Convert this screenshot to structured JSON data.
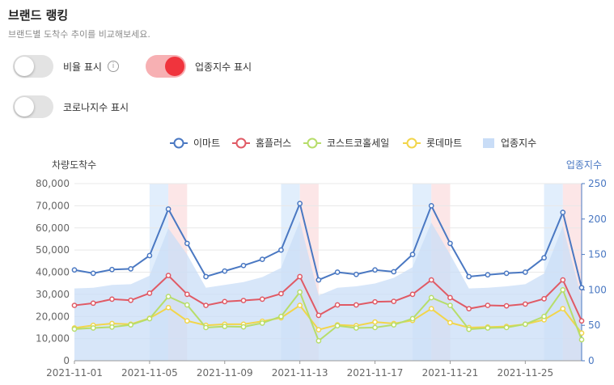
{
  "header": {
    "title": "브랜드 랭킹",
    "subtitle": "브랜드별 도착수 추이를 비교해보세요."
  },
  "toggles": [
    {
      "label": "비율 표시",
      "on": false,
      "info": "i"
    },
    {
      "label": "업종지수 표시",
      "on": true
    },
    {
      "label": "코로나지수 표시",
      "on": false
    }
  ],
  "chart_data": {
    "type": "line",
    "ylabel": "차량도착수",
    "y2label": "업종지수",
    "ylim": [
      0,
      80000
    ],
    "y2lim": [
      0,
      250
    ],
    "yticks": [
      "0",
      "10,000",
      "20,000",
      "30,000",
      "40,000",
      "50,000",
      "60,000",
      "70,000",
      "80,000"
    ],
    "y2ticks": [
      "0",
      "50",
      "100",
      "150",
      "200",
      "250"
    ],
    "x": [
      "2021-11-01",
      "2021-11-02",
      "2021-11-03",
      "2021-11-04",
      "2021-11-05",
      "2021-11-06",
      "2021-11-07",
      "2021-11-08",
      "2021-11-09",
      "2021-11-10",
      "2021-11-11",
      "2021-11-12",
      "2021-11-13",
      "2021-11-14",
      "2021-11-15",
      "2021-11-16",
      "2021-11-17",
      "2021-11-18",
      "2021-11-19",
      "2021-11-20",
      "2021-11-21",
      "2021-11-22",
      "2021-11-23",
      "2021-11-24",
      "2021-11-25",
      "2021-11-26",
      "2021-11-27",
      "2021-11-28"
    ],
    "xtick_labels": [
      "2021-11-01",
      "2021-11-05",
      "2021-11-09",
      "2021-11-13",
      "2021-11-17",
      "2021-11-21",
      "2021-11-25"
    ],
    "legend_position": "top",
    "series": [
      {
        "name": "이마트",
        "color": "#4a78c2",
        "values": [
          41000,
          39500,
          41200,
          41500,
          47500,
          68500,
          53000,
          38000,
          40500,
          43000,
          45800,
          50000,
          71000,
          36500,
          40000,
          39000,
          41000,
          40200,
          48000,
          70000,
          53000,
          38000,
          38800,
          39500,
          40000,
          46500,
          67000,
          33000
        ]
      },
      {
        "name": "홈플러스",
        "color": "#e05a65",
        "values": [
          25000,
          26000,
          27800,
          27300,
          30500,
          38500,
          30000,
          25000,
          26700,
          27200,
          27800,
          30300,
          38000,
          20500,
          25200,
          25200,
          26600,
          26800,
          30000,
          36500,
          28500,
          23500,
          25000,
          24800,
          25600,
          28000,
          36500,
          18000
        ]
      },
      {
        "name": "코스트코홀세일",
        "color": "#b7dd6a",
        "values": [
          14300,
          14800,
          15200,
          16200,
          19000,
          29000,
          25200,
          15000,
          15500,
          15300,
          17000,
          20000,
          31000,
          9000,
          15800,
          14800,
          15000,
          16200,
          19000,
          28500,
          25000,
          14200,
          14800,
          15000,
          16500,
          20000,
          32000,
          9500
        ]
      },
      {
        "name": "롯데마트",
        "color": "#f2d54a",
        "values": [
          14800,
          16000,
          16800,
          16500,
          19200,
          24000,
          18000,
          16000,
          16500,
          16500,
          17800,
          19400,
          25000,
          14000,
          16200,
          15800,
          17500,
          16800,
          18200,
          23500,
          17200,
          15000,
          15200,
          15500,
          16500,
          18500,
          23500,
          12500
        ]
      },
      {
        "name": "업종지수",
        "color": "#c9ddf7",
        "axis": "right",
        "values": [
          102,
          103,
          107,
          108,
          120,
          187,
          150,
          103,
          107,
          111,
          118,
          131,
          197,
          92,
          103,
          105,
          109,
          117,
          132,
          195,
          150,
          102,
          103,
          105,
          108,
          123,
          190,
          88
        ]
      }
    ],
    "highlight_bands": [
      {
        "from": "2021-11-05",
        "to": "2021-11-06",
        "color": "#dcebfb"
      },
      {
        "from": "2021-11-06",
        "to": "2021-11-07",
        "color": "#fbe2e3"
      },
      {
        "from": "2021-11-12",
        "to": "2021-11-13",
        "color": "#dcebfb"
      },
      {
        "from": "2021-11-13",
        "to": "2021-11-14",
        "color": "#fbe2e3"
      },
      {
        "from": "2021-11-19",
        "to": "2021-11-20",
        "color": "#dcebfb"
      },
      {
        "from": "2021-11-20",
        "to": "2021-11-21",
        "color": "#fbe2e3"
      },
      {
        "from": "2021-11-26",
        "to": "2021-11-27",
        "color": "#dcebfb"
      },
      {
        "from": "2021-11-27",
        "to": "2021-11-28",
        "color": "#fbe2e3"
      }
    ],
    "grid": true
  }
}
